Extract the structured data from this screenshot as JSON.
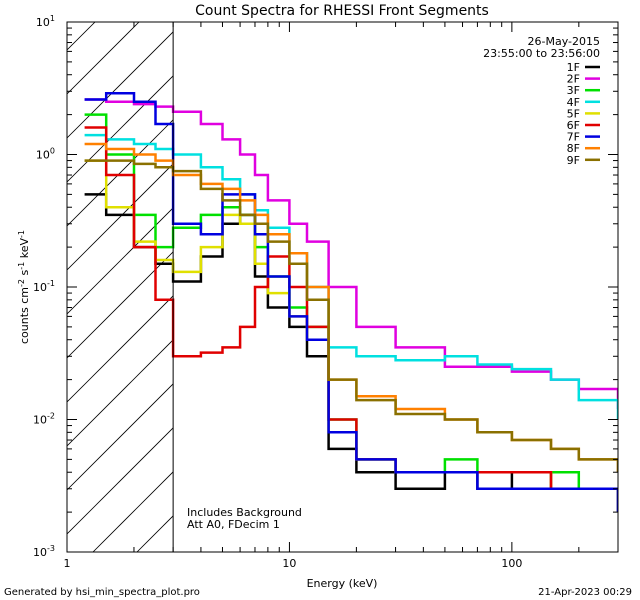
{
  "chart_data": {
    "type": "line",
    "title": "Count Spectra for RHESSI Front Segments",
    "xlabel": "Energy (keV)",
    "ylabel": "counts cm-2 s-1 keV-1",
    "x_scale": "log",
    "y_scale": "log",
    "xlim": [
      1,
      300
    ],
    "ylim": [
      0.001,
      10
    ],
    "x_ticks": [
      {
        "value": 1,
        "label": "1"
      },
      {
        "value": 10,
        "label": "10"
      },
      {
        "value": 100,
        "label": "100"
      }
    ],
    "y_ticks": [
      {
        "value": 0.001,
        "base": "10",
        "exp": "-3"
      },
      {
        "value": 0.01,
        "base": "10",
        "exp": "-2"
      },
      {
        "value": 0.1,
        "base": "10",
        "exp": "-1"
      },
      {
        "value": 1,
        "base": "10",
        "exp": "0"
      },
      {
        "value": 10,
        "base": "10",
        "exp": "1"
      }
    ],
    "shaded_region": {
      "x_from": 1,
      "x_to": 3,
      "pattern": "diagonal-hatch"
    },
    "date": "26-May-2015",
    "time_range": "23:55:00 to 23:56:00",
    "annotations": [
      "Includes Background",
      "Att A0, FDecim 1"
    ],
    "energy_bins_kev": [
      1.2,
      1.5,
      2,
      2.5,
      3,
      4,
      5,
      6,
      7,
      8,
      10,
      12,
      15,
      20,
      30,
      50,
      70,
      100,
      150,
      200,
      300
    ],
    "series": [
      {
        "name": "1F",
        "color": "#000000",
        "values": [
          0.5,
          0.35,
          0.2,
          0.15,
          0.11,
          0.17,
          0.3,
          0.35,
          0.12,
          0.07,
          0.05,
          0.03,
          0.006,
          0.004,
          0.003,
          0.004,
          0.003,
          0.004,
          0.003,
          0.003,
          0.002
        ]
      },
      {
        "name": "2F",
        "color": "#e000e0",
        "values": [
          2.6,
          2.5,
          2.4,
          2.3,
          2.1,
          1.7,
          1.3,
          1.0,
          0.7,
          0.45,
          0.3,
          0.22,
          0.1,
          0.05,
          0.035,
          0.025,
          0.025,
          0.023,
          0.02,
          0.017,
          0.012
        ]
      },
      {
        "name": "3F",
        "color": "#00e000",
        "values": [
          2.0,
          1.0,
          0.35,
          0.2,
          0.28,
          0.35,
          0.4,
          0.35,
          0.2,
          0.12,
          0.07,
          0.05,
          0.01,
          0.005,
          0.004,
          0.005,
          0.004,
          0.004,
          0.004,
          0.003,
          0.003
        ]
      },
      {
        "name": "4F",
        "color": "#00e0e0",
        "values": [
          1.4,
          1.3,
          1.2,
          1.1,
          1.0,
          0.8,
          0.65,
          0.5,
          0.38,
          0.28,
          0.18,
          0.1,
          0.035,
          0.03,
          0.028,
          0.03,
          0.026,
          0.024,
          0.02,
          0.014,
          0.01
        ]
      },
      {
        "name": "5F",
        "color": "#e0e000",
        "values": [
          0.9,
          0.4,
          0.22,
          0.16,
          0.13,
          0.2,
          0.35,
          0.3,
          0.15,
          0.09,
          0.06,
          0.04,
          0.008,
          0.005,
          0.004,
          0.004,
          0.004,
          0.004,
          0.003,
          0.003,
          0.003
        ]
      },
      {
        "name": "6F",
        "color": "#e00000",
        "values": [
          1.6,
          0.7,
          0.2,
          0.08,
          0.03,
          0.032,
          0.035,
          0.05,
          0.1,
          0.17,
          0.1,
          0.05,
          0.01,
          0.005,
          0.004,
          0.004,
          0.004,
          0.004,
          0.003,
          0.003,
          0.003
        ]
      },
      {
        "name": "7F",
        "color": "#0000e0",
        "values": [
          2.6,
          2.9,
          2.5,
          1.7,
          0.3,
          0.25,
          0.5,
          0.5,
          0.25,
          0.12,
          0.06,
          0.04,
          0.008,
          0.005,
          0.004,
          0.004,
          0.003,
          0.003,
          0.003,
          0.003,
          0.002
        ]
      },
      {
        "name": "8F",
        "color": "#ff8000",
        "values": [
          1.2,
          1.1,
          1.0,
          0.9,
          0.7,
          0.6,
          0.55,
          0.45,
          0.35,
          0.25,
          0.18,
          0.1,
          0.02,
          0.015,
          0.012,
          0.01,
          0.008,
          0.007,
          0.006,
          0.005,
          0.004
        ]
      },
      {
        "name": "9F",
        "color": "#8a7000",
        "values": [
          0.9,
          0.9,
          0.85,
          0.8,
          0.75,
          0.55,
          0.45,
          0.35,
          0.3,
          0.22,
          0.15,
          0.08,
          0.02,
          0.014,
          0.011,
          0.01,
          0.008,
          0.007,
          0.006,
          0.005,
          0.004
        ]
      }
    ]
  },
  "footer": {
    "left": "Generated by hsi_min_spectra_plot.pro",
    "right": "21-Apr-2023 00:29"
  }
}
